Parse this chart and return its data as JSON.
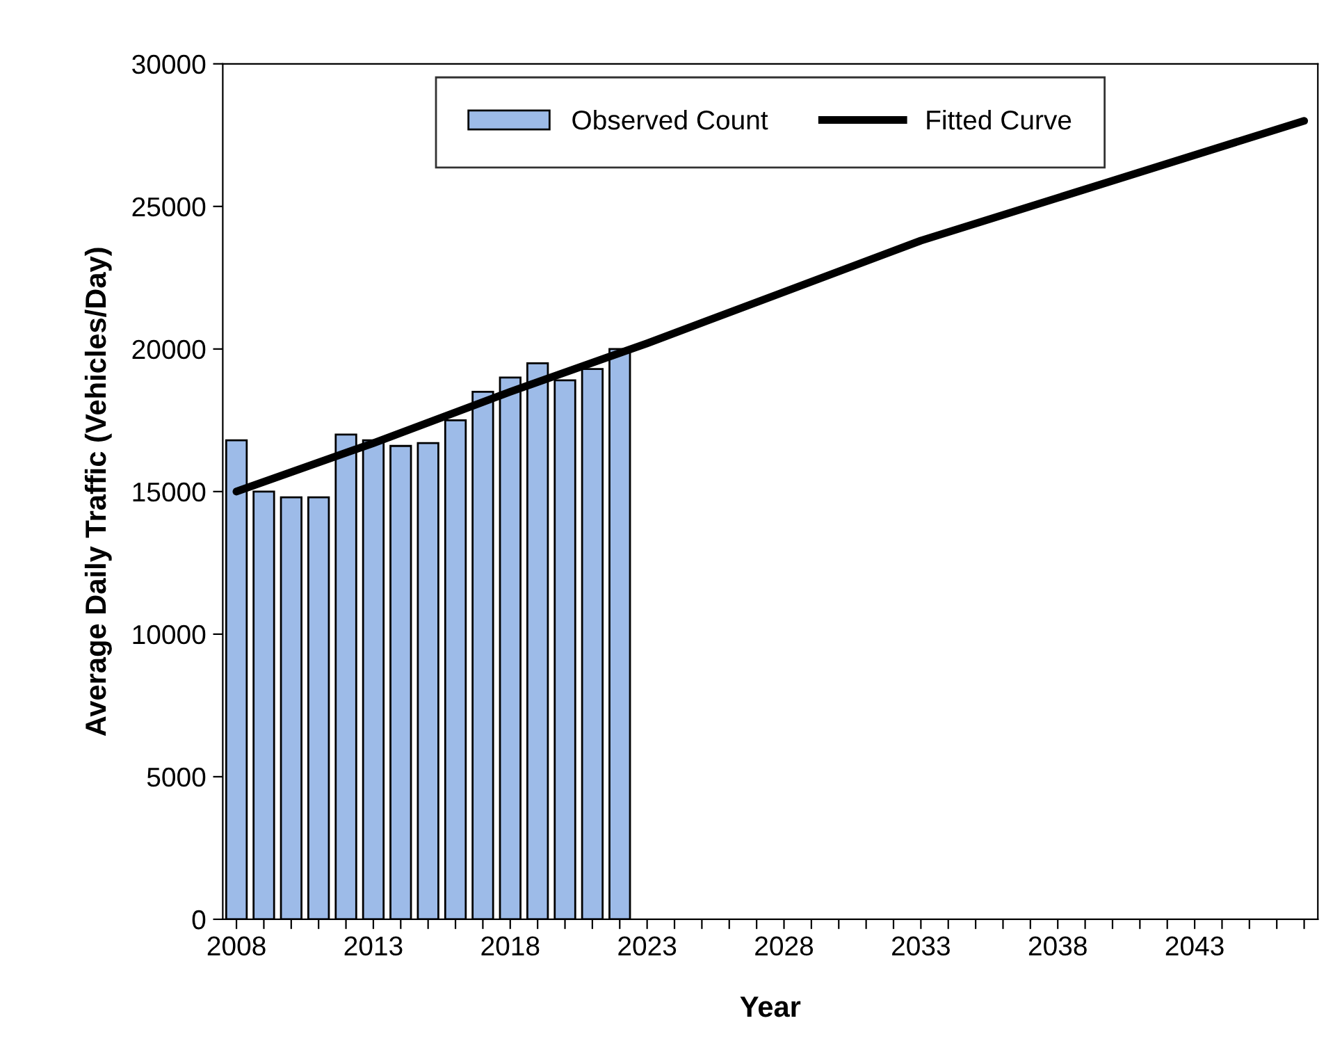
{
  "chart_data": {
    "type": "bar",
    "xlabel": "Year",
    "ylabel": "Average Daily Traffic (Vehicles/Day)",
    "x": [
      2008,
      2009,
      2010,
      2011,
      2012,
      2013,
      2014,
      2015,
      2016,
      2017,
      2018,
      2019,
      2020,
      2021,
      2022
    ],
    "series": [
      {
        "name": "Observed Count",
        "color": "#9dbbe8",
        "values": [
          16800,
          15000,
          14800,
          14800,
          17000,
          16800,
          16600,
          16700,
          17500,
          18500,
          19000,
          19500,
          18900,
          19300,
          20000
        ]
      },
      {
        "name": "Fitted Curve",
        "type": "line",
        "color": "#000000",
        "x": [
          2008,
          2013,
          2018,
          2023,
          2028,
          2033,
          2047
        ],
        "values": [
          15000,
          16700,
          18500,
          20200,
          22000,
          23800,
          28000
        ]
      }
    ],
    "xlim": [
      2007.5,
      2047.5
    ],
    "xticks": [
      2008,
      {
        "value": 2009,
        "label": null
      },
      {
        "value": 2010,
        "label": null
      },
      {
        "value": 2011,
        "label": null
      },
      {
        "value": 2012,
        "label": null
      },
      2013,
      {
        "value": 2014,
        "label": null
      },
      {
        "value": 2015,
        "label": null
      },
      {
        "value": 2016,
        "label": null
      },
      {
        "value": 2017,
        "label": null
      },
      2018,
      {
        "value": 2019,
        "label": null
      },
      {
        "value": 2020,
        "label": null
      },
      {
        "value": 2021,
        "label": null
      },
      {
        "value": 2022,
        "label": null
      },
      2023,
      {
        "value": 2024,
        "label": null
      },
      {
        "value": 2025,
        "label": null
      },
      {
        "value": 2026,
        "label": null
      },
      {
        "value": 2027,
        "label": null
      },
      2028,
      {
        "value": 2029,
        "label": null
      },
      {
        "value": 2030,
        "label": null
      },
      {
        "value": 2031,
        "label": null
      },
      {
        "value": 2032,
        "label": null
      },
      2033,
      {
        "value": 2034,
        "label": null
      },
      {
        "value": 2035,
        "label": null
      },
      {
        "value": 2036,
        "label": null
      },
      {
        "value": 2037,
        "label": null
      },
      2038,
      {
        "value": 2039,
        "label": null
      },
      {
        "value": 2040,
        "label": null
      },
      {
        "value": 2041,
        "label": null
      },
      {
        "value": 2042,
        "label": null
      },
      2043,
      {
        "value": 2044,
        "label": null
      },
      {
        "value": 2045,
        "label": null
      },
      {
        "value": 2046,
        "label": null
      },
      {
        "value": 2047,
        "label": null
      }
    ],
    "ylim": [
      0,
      30000
    ],
    "yticks": [
      0,
      5000,
      10000,
      15000,
      20000,
      25000,
      30000
    ],
    "grid": false,
    "legend": "top"
  }
}
